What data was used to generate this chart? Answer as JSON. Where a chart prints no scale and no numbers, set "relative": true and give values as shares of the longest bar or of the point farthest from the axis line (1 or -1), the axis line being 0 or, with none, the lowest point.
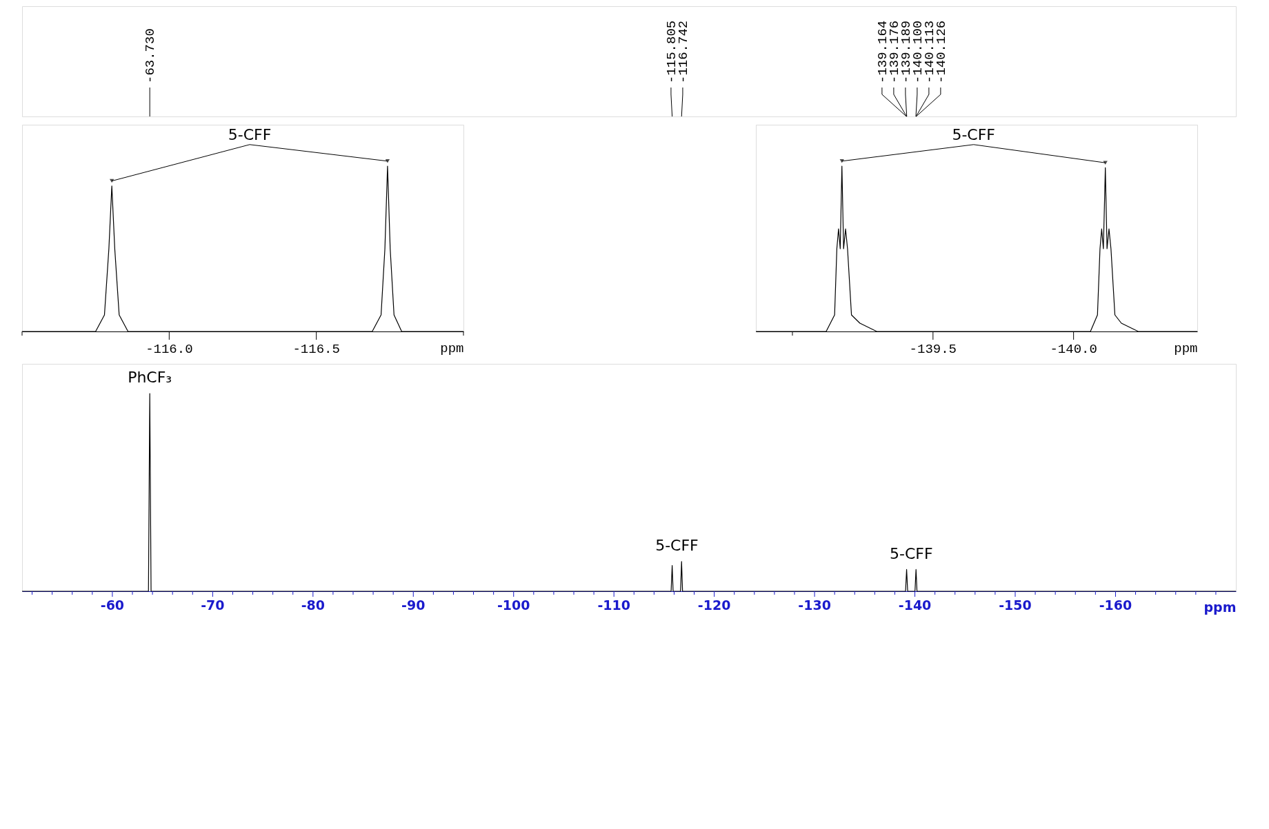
{
  "chart_data": [
    {
      "type": "line",
      "relative": true,
      "xlabel": "ppm",
      "xlim": [
        -115.5,
        -117.0
      ],
      "xticks": [
        {
          "value": -115.5,
          "label": null
        },
        {
          "value": -116.0,
          "label": "-116.0"
        },
        {
          "value": -116.5,
          "label": "-116.5"
        },
        {
          "value": -117.0,
          "label": null
        }
      ],
      "series": [
        {
          "color": "#000000",
          "x": [
            -115.5,
            -115.75,
            -115.78,
            -115.795,
            -115.805,
            -115.815,
            -115.83,
            -115.86,
            -116.69,
            -116.72,
            -116.733,
            -116.742,
            -116.751,
            -116.764,
            -116.79,
            -117.0
          ],
          "values": [
            0,
            0,
            0.1,
            0.5,
            0.88,
            0.5,
            0.1,
            0,
            0,
            0.1,
            0.5,
            1,
            0.5,
            0.1,
            0,
            0
          ]
        }
      ],
      "annotations": [
        {
          "text": "5-CFF",
          "x": -116.742,
          "y": 1
        }
      ],
      "tick_labels": "x"
    },
    {
      "type": "line",
      "relative": true,
      "xlabel": "ppm",
      "xlim": [
        -138.87,
        -140.44
      ],
      "xticks": [
        {
          "value": -139.0,
          "label": null
        },
        {
          "value": -139.5,
          "label": "-139.5"
        },
        {
          "value": -140.0,
          "label": "-140.0"
        }
      ],
      "series": [
        {
          "color": "#000000",
          "x": [
            -138.87,
            -139.12,
            -139.15,
            -139.158,
            -139.164,
            -139.17,
            -139.176,
            -139.182,
            -139.189,
            -139.196,
            -139.21,
            -139.24,
            -139.3,
            -140.06,
            -140.085,
            -140.094,
            -140.1,
            -140.106,
            -140.113,
            -140.119,
            -140.126,
            -140.133,
            -140.147,
            -140.17,
            -140.23,
            -140.44
          ],
          "values": [
            0,
            0,
            0.1,
            0.5,
            0.62,
            0.5,
            1,
            0.5,
            0.62,
            0.5,
            0.1,
            0.05,
            0,
            0,
            0.1,
            0.5,
            0.62,
            0.5,
            0.99,
            0.5,
            0.62,
            0.5,
            0.1,
            0.05,
            0,
            0
          ]
        }
      ],
      "annotations": [
        {
          "text": "5-CFF",
          "x": -139.176,
          "y": 1
        }
      ],
      "tick_labels": "x"
    },
    {
      "type": "line",
      "relative": true,
      "xlabel": "ppm",
      "xlim": [
        -51,
        -172
      ],
      "xticks": [
        {
          "value": -52,
          "label": null
        },
        {
          "value": -54,
          "label": null
        },
        {
          "value": -56,
          "label": null
        },
        {
          "value": -58,
          "label": null
        },
        -60,
        {
          "value": -62,
          "label": null
        },
        {
          "value": -64,
          "label": null
        },
        {
          "value": -66,
          "label": null
        },
        {
          "value": -68,
          "label": null
        },
        -70,
        {
          "value": -72,
          "label": null
        },
        {
          "value": -74,
          "label": null
        },
        {
          "value": -76,
          "label": null
        },
        {
          "value": -78,
          "label": null
        },
        -80,
        {
          "value": -82,
          "label": null
        },
        {
          "value": -84,
          "label": null
        },
        {
          "value": -86,
          "label": null
        },
        {
          "value": -88,
          "label": null
        },
        -90,
        {
          "value": -92,
          "label": null
        },
        {
          "value": -94,
          "label": null
        },
        {
          "value": -96,
          "label": null
        },
        {
          "value": -98,
          "label": null
        },
        -100,
        {
          "value": -102,
          "label": null
        },
        {
          "value": -104,
          "label": null
        },
        {
          "value": -106,
          "label": null
        },
        {
          "value": -108,
          "label": null
        },
        -110,
        {
          "value": -112,
          "label": null
        },
        {
          "value": -114,
          "label": null
        },
        {
          "value": -116,
          "label": null
        },
        {
          "value": -118,
          "label": null
        },
        -120,
        {
          "value": -122,
          "label": null
        },
        {
          "value": -124,
          "label": null
        },
        {
          "value": -126,
          "label": null
        },
        {
          "value": -128,
          "label": null
        },
        -130,
        {
          "value": -132,
          "label": null
        },
        {
          "value": -134,
          "label": null
        },
        {
          "value": -136,
          "label": null
        },
        {
          "value": -138,
          "label": null
        },
        -140,
        {
          "value": -142,
          "label": null
        },
        {
          "value": -144,
          "label": null
        },
        {
          "value": -146,
          "label": null
        },
        {
          "value": -148,
          "label": null
        },
        -150,
        {
          "value": -152,
          "label": null
        },
        {
          "value": -154,
          "label": null
        },
        {
          "value": -156,
          "label": null
        },
        {
          "value": -158,
          "label": null
        },
        -160,
        {
          "value": -162,
          "label": null
        },
        {
          "value": -164,
          "label": null
        },
        {
          "value": -166,
          "label": null
        },
        {
          "value": -168,
          "label": null
        },
        {
          "value": -170,
          "label": null
        }
      ],
      "series": [
        {
          "color": "#000000",
          "x": [
            -51,
            -63.6,
            -63.73,
            -63.86,
            -115.7,
            -115.805,
            -115.9,
            -116.64,
            -116.742,
            -116.84,
            -139.07,
            -139.176,
            -139.28,
            -140.01,
            -140.113,
            -140.21,
            -172
          ],
          "values": [
            0,
            0,
            1,
            0,
            0,
            0.13,
            0,
            0,
            0.15,
            0,
            0,
            0.11,
            0,
            0,
            0.11,
            0,
            0
          ]
        }
      ],
      "annotations": [
        {
          "text": "-63.730",
          "x": -63.73
        },
        {
          "text": "-115.805",
          "x": -115.805
        },
        {
          "text": "-116.742",
          "x": -116.742
        },
        {
          "text": "-139.164",
          "x": -139.164
        },
        {
          "text": "-139.176",
          "x": -139.176
        },
        {
          "text": "-139.189",
          "x": -139.189
        },
        {
          "text": "-140.100",
          "x": -140.1
        },
        {
          "text": "-140.113",
          "x": -140.113
        },
        {
          "text": "-140.126",
          "x": -140.126
        },
        {
          "text": "PhCF₃",
          "x": -63.73,
          "y": 1
        },
        {
          "text": "5-CFF",
          "x": -116.742,
          "y": 0.15
        },
        {
          "text": "5-CFF",
          "x": -140.113,
          "y": 0.11
        }
      ],
      "tick_labels": "x"
    }
  ]
}
